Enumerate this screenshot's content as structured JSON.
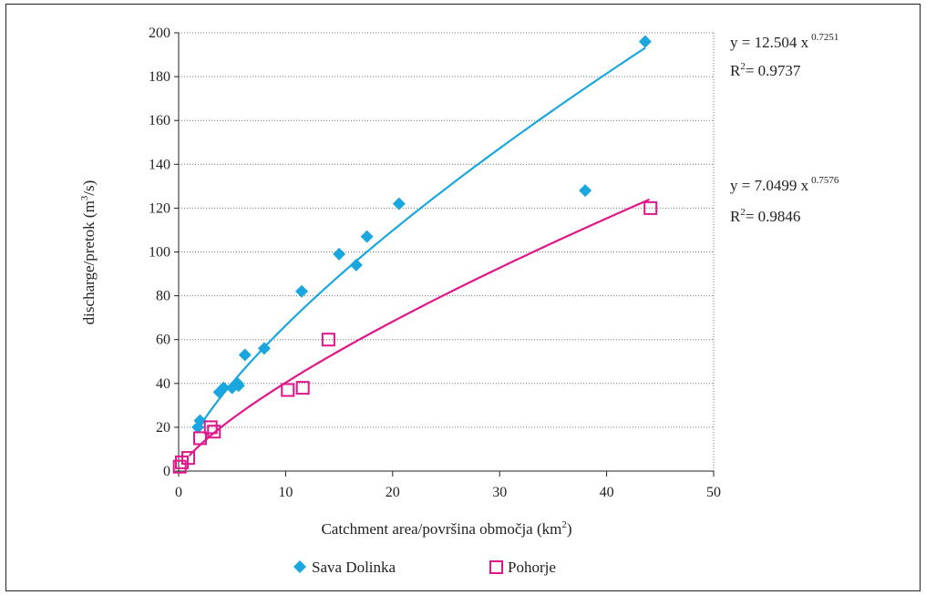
{
  "chart_data": {
    "type": "scatter",
    "title": "",
    "xlabel": "Catchment area/površina območja (km",
    "xlabel_sup": "2",
    "xlabel_end": ")",
    "ylabel": "discharge/pretok (m",
    "ylabel_sup": "3",
    "ylabel_end": "/s)",
    "xlim": [
      0,
      50
    ],
    "ylim": [
      0,
      200
    ],
    "xticks": [
      0,
      10,
      20,
      30,
      40,
      50
    ],
    "yticks": [
      0,
      20,
      40,
      60,
      80,
      100,
      120,
      140,
      160,
      180,
      200
    ],
    "grid": "horizontal dotted",
    "legend_position": "bottom",
    "series": [
      {
        "name": "Sava Dolinka",
        "marker": "diamond",
        "color": "#1aa7e0",
        "points": [
          [
            1.8,
            20
          ],
          [
            2.0,
            23
          ],
          [
            3.8,
            36
          ],
          [
            4.2,
            38
          ],
          [
            5.0,
            38
          ],
          [
            5.5,
            40
          ],
          [
            5.6,
            39
          ],
          [
            6.2,
            53
          ],
          [
            8.0,
            56
          ],
          [
            11.5,
            82
          ],
          [
            15.0,
            99
          ],
          [
            16.6,
            94
          ],
          [
            17.6,
            107
          ],
          [
            20.6,
            122
          ],
          [
            38.0,
            128
          ],
          [
            43.6,
            196
          ]
        ],
        "trendline": {
          "equation": "y = 12.504 x",
          "exponent": "0.7251",
          "r2_label": "R",
          "r2_sup": "2",
          "r2_value": "= 0.9737",
          "a": 12.504,
          "b": 0.7251,
          "x_range": [
            1.8,
            43.6
          ]
        }
      },
      {
        "name": "Pohorje",
        "marker": "square-open",
        "color": "#e0168a",
        "points": [
          [
            0.1,
            2
          ],
          [
            0.3,
            4
          ],
          [
            0.9,
            6
          ],
          [
            2.0,
            15
          ],
          [
            3.0,
            20
          ],
          [
            3.3,
            18
          ],
          [
            10.2,
            37
          ],
          [
            11.6,
            38
          ],
          [
            14.0,
            60
          ],
          [
            44.1,
            120
          ]
        ],
        "trendline": {
          "equation": "y = 7.0499 x",
          "exponent": "0.7576",
          "r2_label": "R",
          "r2_sup": "2",
          "r2_value": "= 0.9846",
          "a": 7.0499,
          "b": 0.7576,
          "x_range": [
            1.0,
            44.0
          ]
        }
      }
    ]
  }
}
